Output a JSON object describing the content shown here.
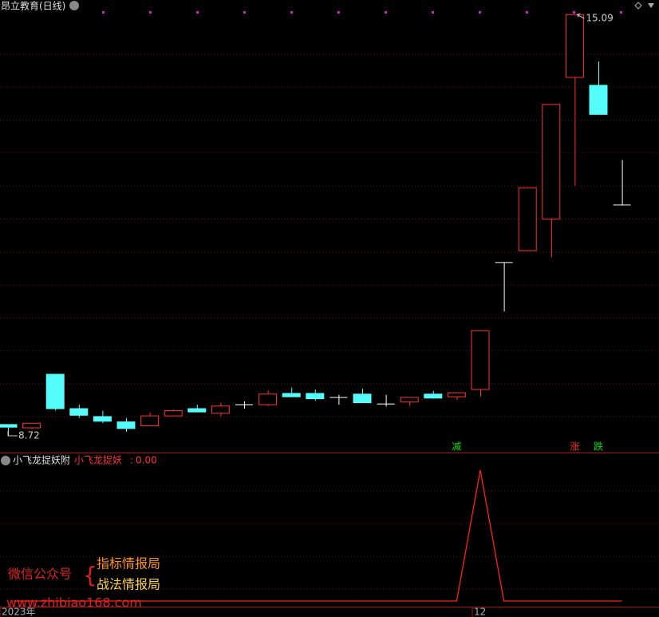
{
  "chart_data": [
    {
      "type": "candlestick",
      "title": "昂立教育(日线)",
      "categories": [
        "2023年",
        null,
        null,
        null,
        null,
        null,
        null,
        null,
        null,
        null,
        null,
        null,
        null,
        null,
        null,
        null,
        null,
        null,
        null,
        null,
        "12",
        null,
        null,
        null,
        null,
        null,
        null
      ],
      "open": [
        8.89,
        8.84,
        9.65,
        9.13,
        9.01,
        8.93,
        8.87,
        9.02,
        9.13,
        9.06,
        9.19,
        9.19,
        9.36,
        9.36,
        9.3,
        9.35,
        9.2,
        9.23,
        9.35,
        9.31,
        9.42,
        11.34,
        11.52,
        12.0,
        14.14,
        14.02,
        12.21
      ],
      "high": [
        8.89,
        8.91,
        9.65,
        9.19,
        9.1,
        8.99,
        9.07,
        9.12,
        9.19,
        9.22,
        9.24,
        9.41,
        9.45,
        9.42,
        9.34,
        9.43,
        9.34,
        9.3,
        9.4,
        9.37,
        10.31,
        11.34,
        12.47,
        13.73,
        15.09,
        14.38,
        12.89
      ],
      "low": [
        8.72,
        8.82,
        9.1,
        8.99,
        8.91,
        8.78,
        8.87,
        9.02,
        9.08,
        9.01,
        9.13,
        9.17,
        9.31,
        9.25,
        9.19,
        9.22,
        9.16,
        9.17,
        9.28,
        9.26,
        9.31,
        10.6,
        11.52,
        11.42,
        12.5,
        13.58,
        12.21
      ],
      "close": [
        8.85,
        8.91,
        9.13,
        9.03,
        8.94,
        8.83,
        9.02,
        9.1,
        9.08,
        9.17,
        9.19,
        9.35,
        9.31,
        9.28,
        9.3,
        9.22,
        9.2,
        9.3,
        9.29,
        9.37,
        10.31,
        11.34,
        12.47,
        13.73,
        15.09,
        13.58,
        12.21
      ],
      "up_color": "#ff3232",
      "down_color": "#54fcfc",
      "flat_color": "#ffffff",
      "ylim": [
        8.49,
        15.31
      ],
      "max_label": "15.09",
      "min_label": "8.72",
      "signals": [
        null,
        null,
        null,
        null,
        null,
        null,
        null,
        null,
        null,
        null,
        null,
        null,
        null,
        null,
        null,
        null,
        null,
        null,
        null,
        {
          "label": "减",
          "color": "#00e000"
        },
        null,
        null,
        null,
        null,
        {
          "label": "涨",
          "color": "#ff3030"
        },
        {
          "label": "跌",
          "color": "#00e000"
        },
        null
      ]
    },
    {
      "type": "line",
      "title": "小飞龙捉妖附",
      "series": [
        {
          "name": "小飞龙捉妖",
          "color": "#ff2020",
          "last_label": "0.00",
          "values": [
            0,
            0,
            0,
            0,
            0,
            0,
            0,
            0,
            0,
            0,
            0,
            0,
            0,
            0,
            0,
            0,
            0,
            0,
            0,
            0,
            1,
            0,
            0,
            0,
            0,
            0,
            0
          ]
        }
      ],
      "ylim": [
        0,
        1
      ]
    }
  ],
  "watermark": {
    "account": "微信公众号",
    "name1": "指标情报局",
    "name2": "战法情报局",
    "url": "www.zhibiao168.com"
  }
}
